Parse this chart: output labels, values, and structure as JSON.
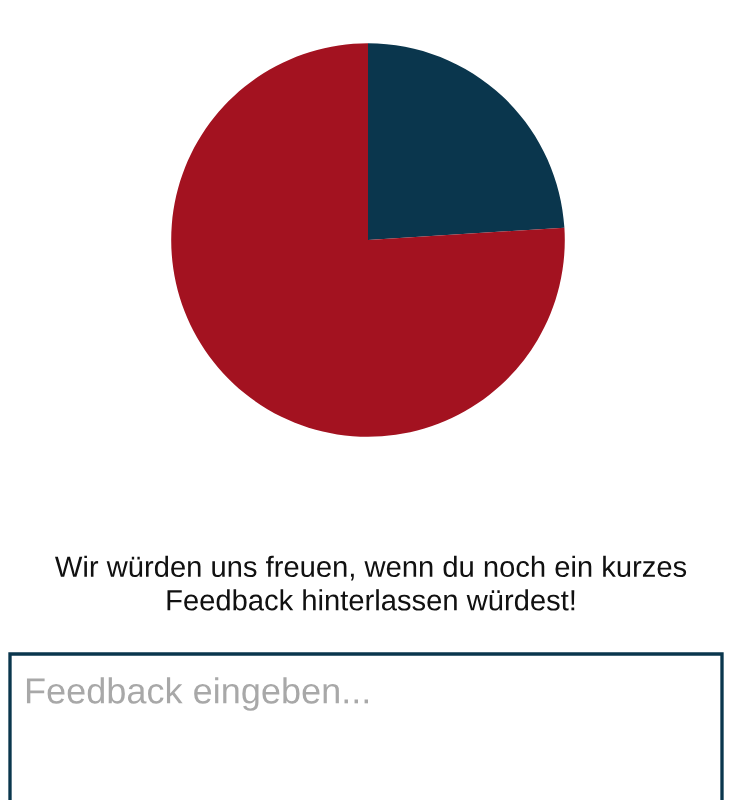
{
  "chart_data": {
    "type": "pie",
    "categories": [
      null,
      null
    ],
    "values": [
      24,
      76
    ],
    "colors": [
      "#0a364d",
      "#a31220"
    ],
    "annotations": [
      "Wir würden uns freuen, wenn du noch ein kurzes Feedback hinterlassen würdest!",
      "Feedback eingeben..."
    ]
  }
}
